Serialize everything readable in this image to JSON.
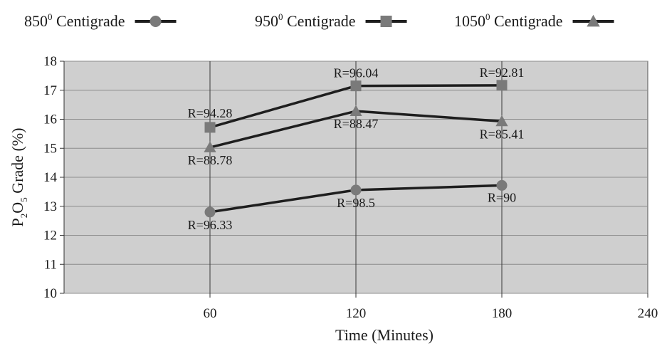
{
  "chart_data": {
    "type": "line",
    "xlabel": "Time (Minutes)",
    "ylabel": {
      "prefix": "P",
      "sub1": "2",
      "mid": "O",
      "sub2": "5",
      "suffix": " Grade (%)"
    },
    "x_ticks": [
      60,
      120,
      180,
      240
    ],
    "xlim": [
      0,
      240
    ],
    "ylim": [
      10,
      18
    ],
    "y_ticks": [
      10,
      11,
      12,
      13,
      14,
      15,
      16,
      17,
      18
    ],
    "grid": true,
    "legend_position": "top",
    "series": [
      {
        "name": "850",
        "name_sup": "0",
        "name_suffix": " Centigrade",
        "marker": "circle",
        "x": [
          60,
          120,
          180
        ],
        "y": [
          12.8,
          13.56,
          13.72
        ],
        "labels": [
          "R=96.33",
          "R=98.5",
          "R=90"
        ],
        "label_dy": [
          24,
          24,
          23
        ]
      },
      {
        "name": "950",
        "name_sup": "0",
        "name_suffix": " Centigrade",
        "marker": "square",
        "x": [
          60,
          120,
          180
        ],
        "y": [
          15.72,
          17.15,
          17.17
        ],
        "labels": [
          "R=94.28",
          "R=96.04",
          "R=92.81"
        ],
        "label_dy": [
          -14,
          -12,
          -12
        ]
      },
      {
        "name": "1050",
        "name_sup": "0",
        "name_suffix": " Centigrade",
        "marker": "triangle",
        "x": [
          60,
          120,
          180
        ],
        "y": [
          15.03,
          16.28,
          15.93
        ],
        "labels": [
          "R=88.78",
          "R=88.47",
          "R=85.41"
        ],
        "label_dy": [
          24,
          24,
          24
        ]
      }
    ],
    "colors": {
      "plot_bg": "#cfcfcf",
      "line": "#1e1e1e",
      "marker": "#7a7a7a",
      "grid": "#8c8c8c"
    }
  }
}
